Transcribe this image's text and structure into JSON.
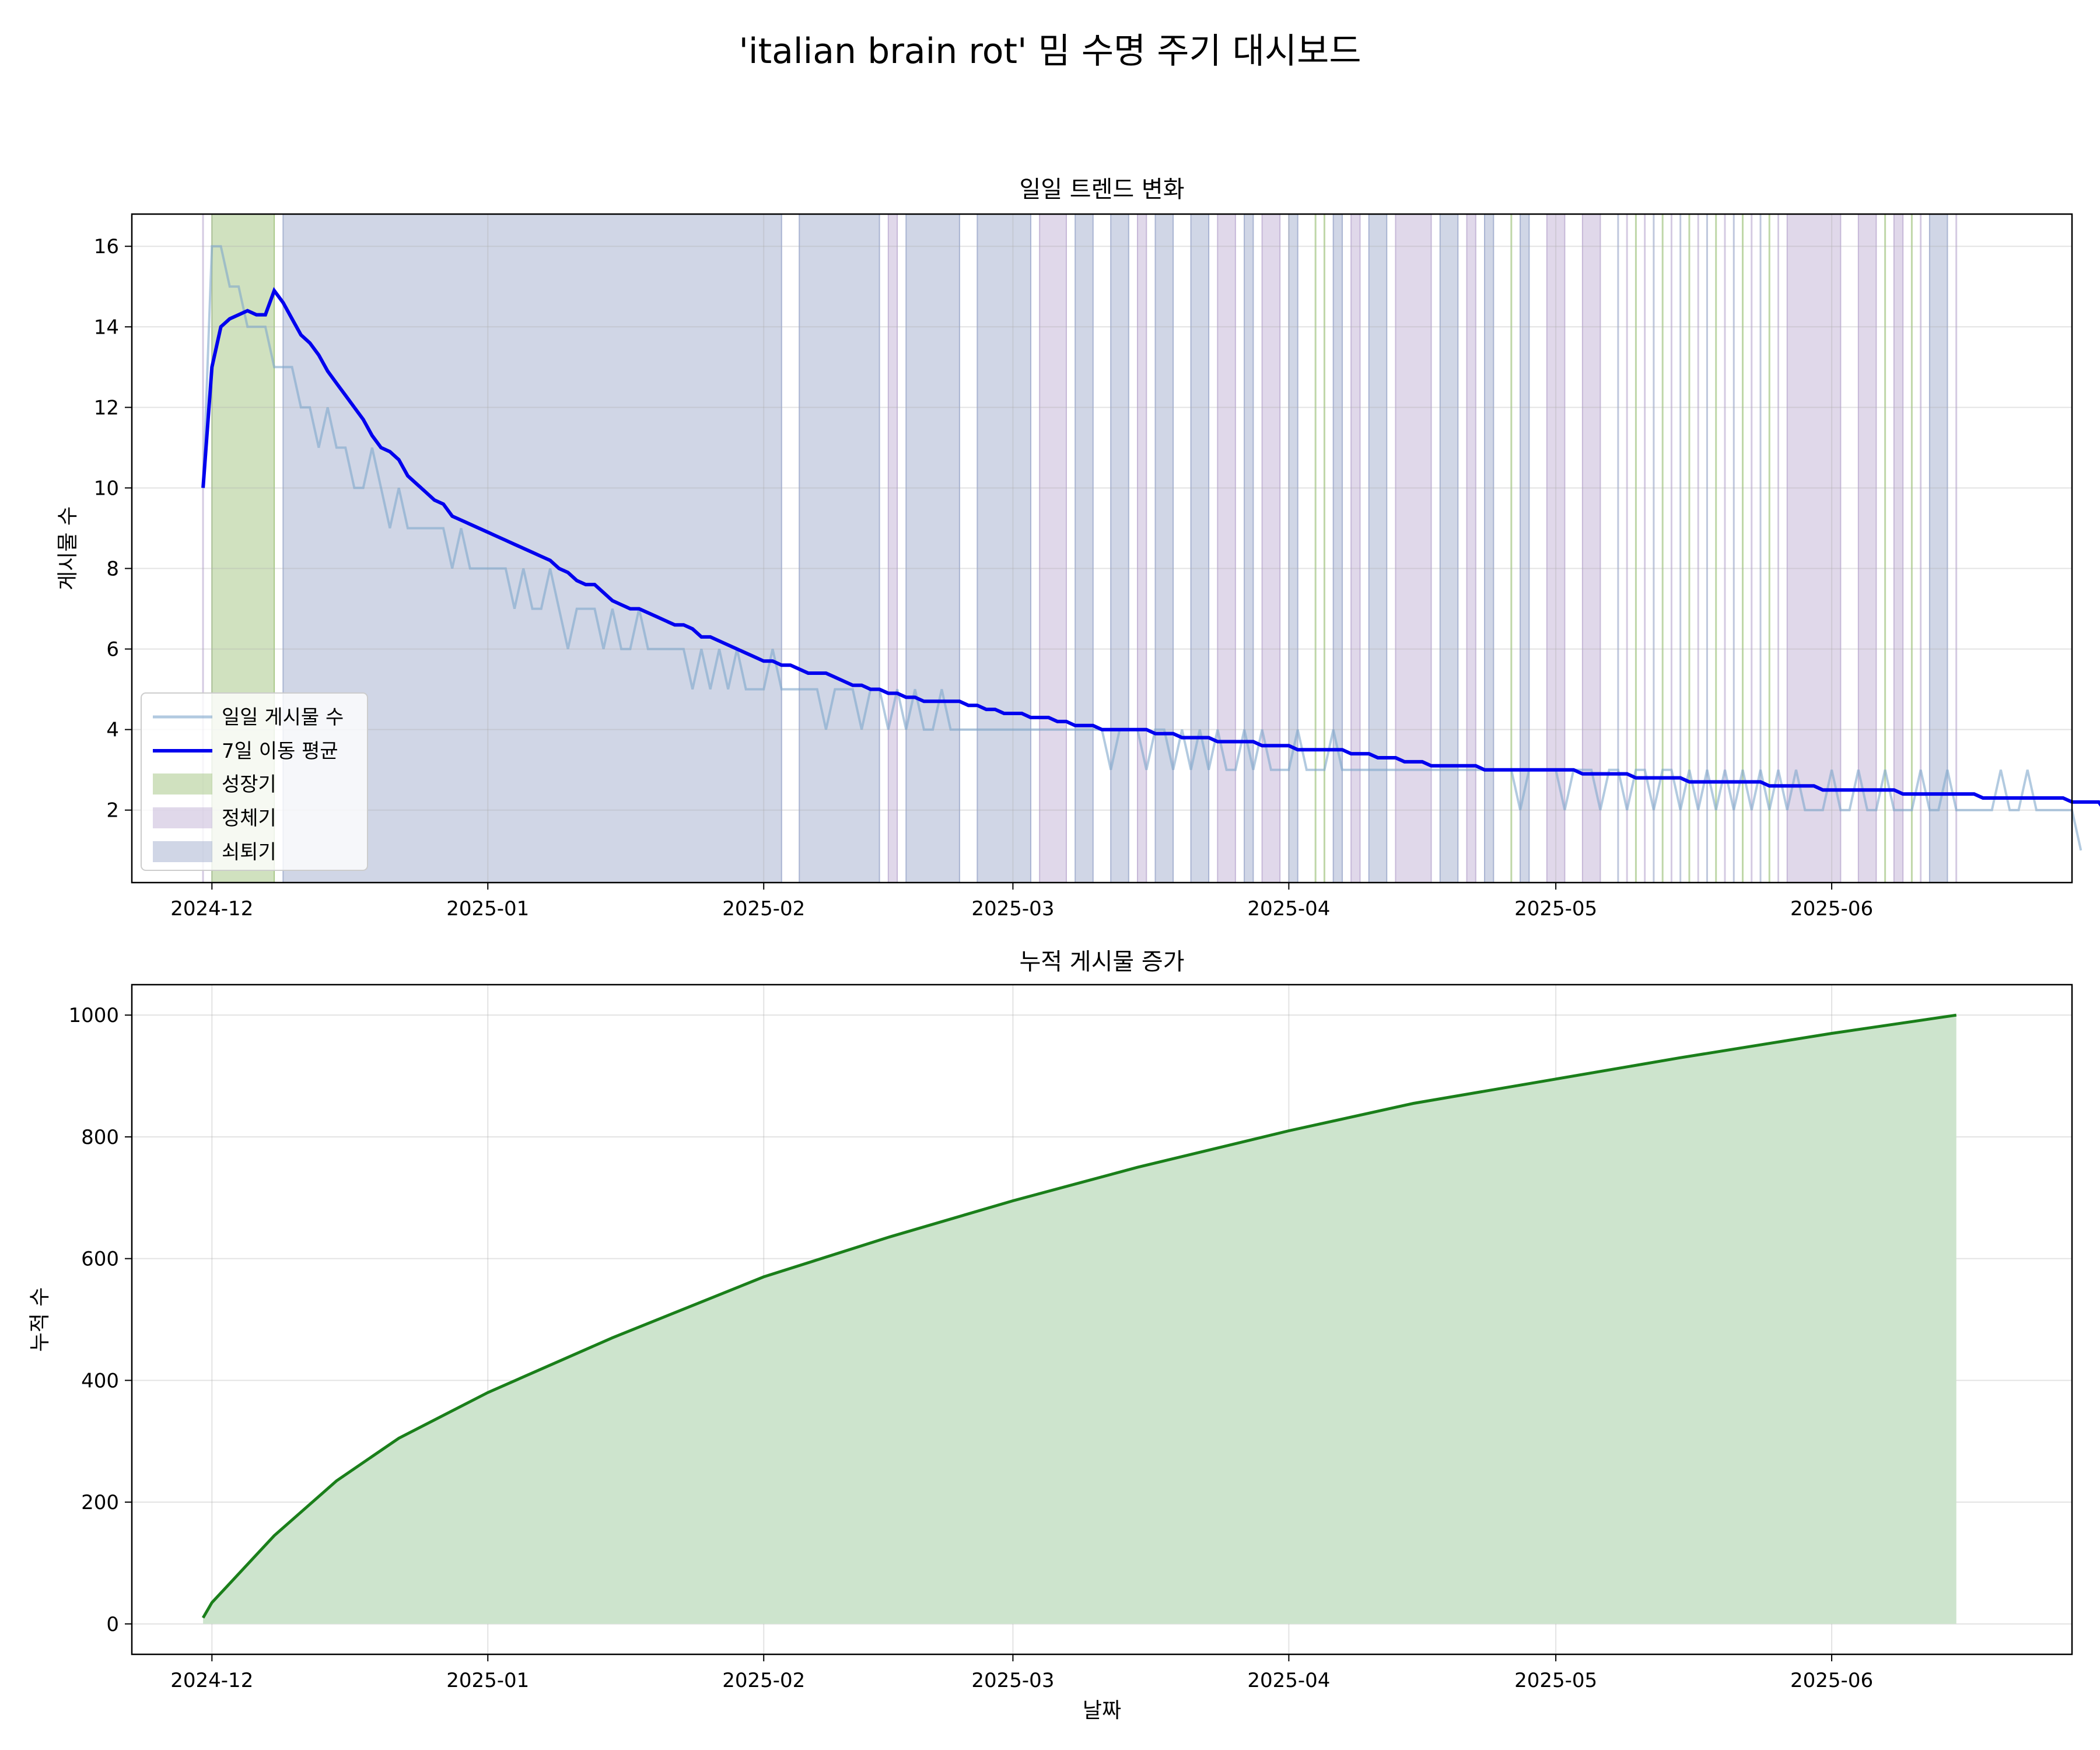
{
  "title": "'italian brain rot' 밈 수명 주기 대시보드",
  "colors": {
    "daily": "#7fa7cc",
    "ma": "#0000ee",
    "growth": "#a9c98b",
    "stagnation": "#c6b8d8",
    "decline": "#a9b4d2",
    "cumulative_line": "#1a7f1a",
    "cumulative_fill": "#cde4cd"
  },
  "chart_data": [
    {
      "type": "line",
      "title": "일일 트렌드 변화",
      "xlabel": "",
      "ylabel": "게시물 수",
      "xlim": [
        "2024-11-22",
        "2025-06-28"
      ],
      "ylim": [
        0.2,
        16.8
      ],
      "x_ticks": [
        "2024-12",
        "2025-01",
        "2025-02",
        "2025-03",
        "2025-04",
        "2025-05",
        "2025-06"
      ],
      "x_tick_dates": [
        "2024-12-01",
        "2025-01-01",
        "2025-02-01",
        "2025-03-01",
        "2025-04-01",
        "2025-05-01",
        "2025-06-01"
      ],
      "y_ticks": [
        2,
        4,
        6,
        8,
        10,
        12,
        14,
        16
      ],
      "grid": true,
      "legend_position": "lower-left",
      "legend": [
        "일일 게시물 수",
        "7일 이동 평균",
        "성장기",
        "정체기",
        "쇠퇴기"
      ],
      "start_date": "2024-11-30",
      "series": [
        {
          "name": "일일 게시물 수",
          "values": [
            10,
            16,
            16,
            15,
            15,
            14,
            14,
            14,
            13,
            13,
            13,
            12,
            12,
            11,
            12,
            11,
            11,
            10,
            10,
            11,
            10,
            9,
            10,
            9,
            9,
            9,
            9,
            9,
            8,
            9,
            8,
            8,
            8,
            8,
            8,
            7,
            8,
            7,
            7,
            8,
            7,
            6,
            7,
            7,
            7,
            6,
            7,
            6,
            6,
            7,
            6,
            6,
            6,
            6,
            6,
            5,
            6,
            5,
            6,
            5,
            6,
            5,
            5,
            5,
            6,
            5,
            5,
            5,
            5,
            5,
            4,
            5,
            5,
            5,
            4,
            5,
            5,
            4,
            5,
            4,
            5,
            4,
            4,
            5,
            4,
            4,
            4,
            4,
            4,
            4,
            4,
            4,
            4,
            4,
            4,
            4,
            4,
            4,
            4,
            4,
            4,
            4,
            3,
            4,
            4,
            4,
            3,
            4,
            4,
            3,
            4,
            3,
            4,
            3,
            4,
            3,
            3,
            4,
            3,
            4,
            3,
            3,
            3,
            4,
            3,
            3,
            3,
            4,
            3,
            3,
            3,
            3,
            3,
            3,
            3,
            3,
            3,
            3,
            3,
            3,
            3,
            3,
            3,
            3,
            3,
            3,
            3,
            3,
            2,
            3,
            3,
            3,
            3,
            2,
            3,
            3,
            3,
            2,
            3,
            3,
            2,
            3,
            3,
            2,
            3,
            3,
            2,
            3,
            2,
            3,
            2,
            3,
            2,
            3,
            2,
            3,
            2,
            3,
            2,
            3,
            2,
            2,
            2,
            3,
            2,
            2,
            3,
            2,
            2,
            3,
            2,
            2,
            2,
            3,
            2,
            2,
            3,
            2,
            2,
            2,
            2,
            2,
            3,
            2,
            2,
            3,
            2,
            2,
            2,
            2,
            2,
            1
          ]
        },
        {
          "name": "7일 이동 평균",
          "values": [
            10,
            13,
            14,
            14.2,
            14.3,
            14.4,
            14.3,
            14.3,
            14.9,
            14.6,
            14.2,
            13.8,
            13.6,
            13.3,
            12.9,
            12.6,
            12.3,
            12,
            11.7,
            11.3,
            11,
            10.9,
            10.7,
            10.3,
            10.1,
            9.9,
            9.7,
            9.6,
            9.3,
            9.2,
            9.1,
            9,
            8.9,
            8.8,
            8.7,
            8.6,
            8.5,
            8.4,
            8.3,
            8.2,
            8,
            7.9,
            7.7,
            7.6,
            7.6,
            7.4,
            7.2,
            7.1,
            7,
            7,
            6.9,
            6.8,
            6.7,
            6.6,
            6.6,
            6.5,
            6.3,
            6.3,
            6.2,
            6.1,
            6,
            5.9,
            5.8,
            5.7,
            5.7,
            5.6,
            5.6,
            5.5,
            5.4,
            5.4,
            5.4,
            5.3,
            5.2,
            5.1,
            5.1,
            5,
            5,
            4.9,
            4.9,
            4.8,
            4.8,
            4.7,
            4.7,
            4.7,
            4.7,
            4.7,
            4.6,
            4.6,
            4.5,
            4.5,
            4.4,
            4.4,
            4.4,
            4.3,
            4.3,
            4.3,
            4.2,
            4.2,
            4.1,
            4.1,
            4.1,
            4,
            4,
            4,
            4,
            4,
            4,
            3.9,
            3.9,
            3.9,
            3.8,
            3.8,
            3.8,
            3.8,
            3.7,
            3.7,
            3.7,
            3.7,
            3.7,
            3.6,
            3.6,
            3.6,
            3.6,
            3.5,
            3.5,
            3.5,
            3.5,
            3.5,
            3.5,
            3.4,
            3.4,
            3.4,
            3.3,
            3.3,
            3.3,
            3.2,
            3.2,
            3.2,
            3.1,
            3.1,
            3.1,
            3.1,
            3.1,
            3.1,
            3,
            3,
            3,
            3,
            3,
            3,
            3,
            3,
            3,
            3,
            3,
            2.9,
            2.9,
            2.9,
            2.9,
            2.9,
            2.9,
            2.8,
            2.8,
            2.8,
            2.8,
            2.8,
            2.8,
            2.7,
            2.7,
            2.7,
            2.7,
            2.7,
            2.7,
            2.7,
            2.7,
            2.7,
            2.6,
            2.6,
            2.6,
            2.6,
            2.6,
            2.6,
            2.5,
            2.5,
            2.5,
            2.5,
            2.5,
            2.5,
            2.5,
            2.5,
            2.5,
            2.4,
            2.4,
            2.4,
            2.4,
            2.4,
            2.4,
            2.4,
            2.4,
            2.4,
            2.3,
            2.3,
            2.3,
            2.3,
            2.3,
            2.3,
            2.3,
            2.3,
            2.3,
            2.3,
            2.2,
            2.2,
            2.2,
            2.2,
            1.9
          ]
        }
      ],
      "phase_spans": [
        {
          "phase": "성장기",
          "start": "2024-12-01",
          "end": "2024-12-08"
        },
        {
          "phase": "쇠퇴기",
          "start": "2024-12-09",
          "end": "2025-02-03"
        },
        {
          "phase": "쇠퇴기",
          "start": "2025-02-05",
          "end": "2025-02-14"
        },
        {
          "phase": "정체기",
          "start": "2025-02-15",
          "end": "2025-02-16"
        },
        {
          "phase": "쇠퇴기",
          "start": "2025-02-17",
          "end": "2025-02-23"
        },
        {
          "phase": "쇠퇴기",
          "start": "2025-02-25",
          "end": "2025-03-03"
        },
        {
          "phase": "정체기",
          "start": "2025-03-04",
          "end": "2025-03-07"
        },
        {
          "phase": "쇠퇴기",
          "start": "2025-03-08",
          "end": "2025-03-10"
        },
        {
          "phase": "쇠퇴기",
          "start": "2025-03-12",
          "end": "2025-03-14"
        },
        {
          "phase": "정체기",
          "start": "2025-03-15",
          "end": "2025-03-16"
        },
        {
          "phase": "쇠퇴기",
          "start": "2025-03-17",
          "end": "2025-03-19"
        },
        {
          "phase": "쇠퇴기",
          "start": "2025-03-21",
          "end": "2025-03-23"
        },
        {
          "phase": "정체기",
          "start": "2025-03-24",
          "end": "2025-03-26"
        },
        {
          "phase": "쇠퇴기",
          "start": "2025-03-27",
          "end": "2025-03-28"
        },
        {
          "phase": "정체기",
          "start": "2025-03-29",
          "end": "2025-03-31"
        },
        {
          "phase": "쇠퇴기",
          "start": "2025-04-01",
          "end": "2025-04-02"
        },
        {
          "phase": "쇠퇴기",
          "start": "2025-04-06",
          "end": "2025-04-07"
        },
        {
          "phase": "정체기",
          "start": "2025-04-08",
          "end": "2025-04-09"
        },
        {
          "phase": "쇠퇴기",
          "start": "2025-04-10",
          "end": "2025-04-12"
        },
        {
          "phase": "정체기",
          "start": "2025-04-13",
          "end": "2025-04-17"
        },
        {
          "phase": "쇠퇴기",
          "start": "2025-04-18",
          "end": "2025-04-20"
        },
        {
          "phase": "정체기",
          "start": "2025-04-21",
          "end": "2025-04-22"
        },
        {
          "phase": "쇠퇴기",
          "start": "2025-04-23",
          "end": "2025-04-24"
        },
        {
          "phase": "쇠퇴기",
          "start": "2025-04-27",
          "end": "2025-04-28"
        },
        {
          "phase": "정체기",
          "start": "2025-04-30",
          "end": "2025-05-02"
        },
        {
          "phase": "정체기",
          "start": "2025-05-04",
          "end": "2025-05-06"
        },
        {
          "phase": "정체기",
          "start": "2025-05-27",
          "end": "2025-06-02"
        },
        {
          "phase": "정체기",
          "start": "2025-06-04",
          "end": "2025-06-06"
        },
        {
          "phase": "정체기",
          "start": "2025-06-08",
          "end": "2025-06-09"
        },
        {
          "phase": "쇠퇴기",
          "start": "2025-06-12",
          "end": "2025-06-14"
        }
      ],
      "phase_lines": [
        {
          "phase": "정체기",
          "date": "2024-11-30"
        },
        {
          "phase": "성장기",
          "date": "2025-04-04"
        },
        {
          "phase": "성장기",
          "date": "2025-04-05"
        },
        {
          "phase": "성장기",
          "date": "2025-04-26"
        },
        {
          "phase": "쇠퇴기",
          "date": "2025-05-08"
        },
        {
          "phase": "정체기",
          "date": "2025-05-09"
        },
        {
          "phase": "성장기",
          "date": "2025-05-10"
        },
        {
          "phase": "정체기",
          "date": "2025-05-11"
        },
        {
          "phase": "쇠퇴기",
          "date": "2025-05-12"
        },
        {
          "phase": "성장기",
          "date": "2025-05-13"
        },
        {
          "phase": "정체기",
          "date": "2025-05-14"
        },
        {
          "phase": "쇠퇴기",
          "date": "2025-05-15"
        },
        {
          "phase": "성장기",
          "date": "2025-05-16"
        },
        {
          "phase": "정체기",
          "date": "2025-05-17"
        },
        {
          "phase": "쇠퇴기",
          "date": "2025-05-18"
        },
        {
          "phase": "성장기",
          "date": "2025-05-19"
        },
        {
          "phase": "정체기",
          "date": "2025-05-20"
        },
        {
          "phase": "쇠퇴기",
          "date": "2025-05-21"
        },
        {
          "phase": "성장기",
          "date": "2025-05-22"
        },
        {
          "phase": "정체기",
          "date": "2025-05-23"
        },
        {
          "phase": "쇠퇴기",
          "date": "2025-05-24"
        },
        {
          "phase": "성장기",
          "date": "2025-05-25"
        },
        {
          "phase": "정체기",
          "date": "2025-05-26"
        },
        {
          "phase": "성장기",
          "date": "2025-06-07"
        },
        {
          "phase": "성장기",
          "date": "2025-06-10"
        },
        {
          "phase": "정체기",
          "date": "2025-06-11"
        },
        {
          "phase": "정체기",
          "date": "2025-06-15"
        }
      ]
    },
    {
      "type": "area",
      "title": "누적 게시물 증가",
      "xlabel": "날짜",
      "ylabel": "누적 수",
      "xlim": [
        "2024-11-22",
        "2025-06-28"
      ],
      "ylim": [
        -50,
        1050
      ],
      "x_ticks": [
        "2024-12",
        "2025-01",
        "2025-02",
        "2025-03",
        "2025-04",
        "2025-05",
        "2025-06"
      ],
      "x_tick_dates": [
        "2024-12-01",
        "2025-01-01",
        "2025-02-01",
        "2025-03-01",
        "2025-04-01",
        "2025-05-01",
        "2025-06-01"
      ],
      "y_ticks": [
        0,
        200,
        400,
        600,
        800,
        1000
      ],
      "grid": true,
      "series": [
        {
          "name": "",
          "x": [
            "2024-11-30",
            "2024-12-01",
            "2024-12-08",
            "2024-12-15",
            "2024-12-22",
            "2025-01-01",
            "2025-01-15",
            "2025-02-01",
            "2025-02-15",
            "2025-03-01",
            "2025-03-15",
            "2025-04-01",
            "2025-04-15",
            "2025-05-01",
            "2025-05-15",
            "2025-06-01",
            "2025-06-15"
          ],
          "values": [
            10,
            35,
            145,
            235,
            305,
            380,
            470,
            570,
            635,
            695,
            750,
            810,
            855,
            895,
            930,
            970,
            1000
          ]
        }
      ]
    }
  ]
}
